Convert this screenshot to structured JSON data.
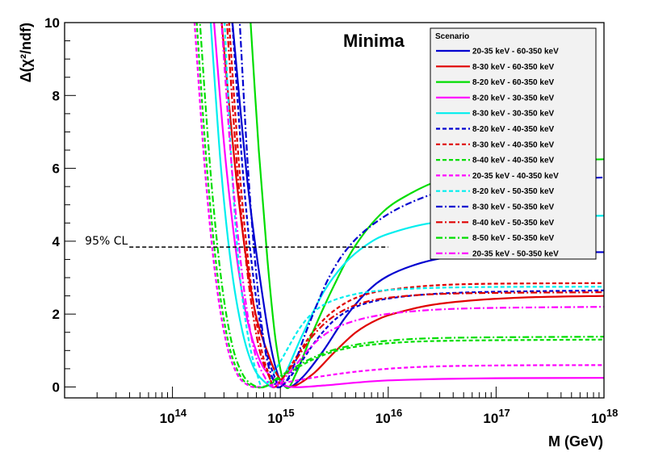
{
  "chart_data": {
    "type": "line",
    "title": "Minima",
    "xlabel": "M (GeV)",
    "ylabel": "Δ(χ²/ndf)",
    "xscale": "log",
    "xlim": [
      10000000000000.0,
      1e+18
    ],
    "ylim": [
      -0.3,
      10
    ],
    "x_tick_labels": [
      {
        "exp": 14,
        "base": "10",
        "sup": "14"
      },
      {
        "exp": 15,
        "base": "10",
        "sup": "15"
      },
      {
        "exp": 16,
        "base": "10",
        "sup": "16"
      },
      {
        "exp": 17,
        "base": "10",
        "sup": "17"
      },
      {
        "exp": 18,
        "base": "10",
        "sup": "18"
      }
    ],
    "y_ticks": [
      0,
      2,
      4,
      6,
      8,
      10
    ],
    "y_tick_labels": [
      "0",
      "2",
      "4",
      "6",
      "8",
      "10"
    ],
    "annotation": {
      "text": "95% CL",
      "y": 3.84,
      "x_from_exp": 13.6,
      "x_to_exp": 16.0
    },
    "legend": {
      "header": "Scenario",
      "position": "top-right"
    },
    "series": [
      {
        "name": "20-35 keV  -  60-350 keV",
        "color": "#0000d0",
        "dash": "solid",
        "min_exp": 15.05,
        "plateau": 3.7,
        "points": [
          [
            14.55,
            10.2
          ],
          [
            14.7,
            5.5
          ],
          [
            14.85,
            2.2
          ],
          [
            14.95,
            0.6
          ],
          [
            15.05,
            0.0
          ],
          [
            15.2,
            0.25
          ],
          [
            15.4,
            1.0
          ],
          [
            15.6,
            1.9
          ],
          [
            15.8,
            2.6
          ],
          [
            16.0,
            3.05
          ],
          [
            16.3,
            3.4
          ],
          [
            16.6,
            3.58
          ],
          [
            17.0,
            3.68
          ],
          [
            17.5,
            3.7
          ],
          [
            18.0,
            3.7
          ]
        ]
      },
      {
        "name": "8-30 keV  -  60-350 keV",
        "color": "#e00000",
        "dash": "solid",
        "min_exp": 15.1,
        "plateau": 2.5,
        "points": [
          [
            14.45,
            10.2
          ],
          [
            14.6,
            5.5
          ],
          [
            14.75,
            2.3
          ],
          [
            14.9,
            0.8
          ],
          [
            15.0,
            0.2
          ],
          [
            15.1,
            0.0
          ],
          [
            15.3,
            0.35
          ],
          [
            15.5,
            0.95
          ],
          [
            15.7,
            1.5
          ],
          [
            15.9,
            1.85
          ],
          [
            16.1,
            2.05
          ],
          [
            16.4,
            2.25
          ],
          [
            16.8,
            2.38
          ],
          [
            17.3,
            2.46
          ],
          [
            18.0,
            2.5
          ]
        ]
      },
      {
        "name": "8-20 keV  -  60-350 keV",
        "color": "#00dd00",
        "dash": "solid",
        "min_exp": 15.05,
        "plateau": 6.25,
        "points": [
          [
            14.72,
            10.2
          ],
          [
            14.8,
            6.5
          ],
          [
            14.88,
            3.5
          ],
          [
            14.96,
            1.2
          ],
          [
            15.05,
            0.0
          ],
          [
            15.15,
            0.4
          ],
          [
            15.3,
            1.5
          ],
          [
            15.5,
            2.8
          ],
          [
            15.7,
            3.9
          ],
          [
            15.95,
            4.8
          ],
          [
            16.2,
            5.3
          ],
          [
            16.5,
            5.7
          ],
          [
            16.9,
            6.0
          ],
          [
            17.4,
            6.2
          ],
          [
            18.0,
            6.25
          ]
        ]
      },
      {
        "name": "8-20 keV  -  30-350 keV",
        "color": "#ff00ff",
        "dash": "solid",
        "min_exp": 15.1,
        "plateau": 0.25,
        "points": [
          [
            14.38,
            10.2
          ],
          [
            14.5,
            6.0
          ],
          [
            14.65,
            2.5
          ],
          [
            14.8,
            0.8
          ],
          [
            14.95,
            0.2
          ],
          [
            15.1,
            0.0
          ],
          [
            15.4,
            0.04
          ],
          [
            15.7,
            0.12
          ],
          [
            16.0,
            0.18
          ],
          [
            16.5,
            0.22
          ],
          [
            17.0,
            0.24
          ],
          [
            18.0,
            0.25
          ]
        ]
      },
      {
        "name": "8-30 keV  -  30-350 keV",
        "color": "#00eeee",
        "dash": "solid",
        "min_exp": 14.95,
        "plateau": 4.7,
        "points": [
          [
            14.35,
            10.2
          ],
          [
            14.45,
            6.0
          ],
          [
            14.55,
            3.2
          ],
          [
            14.65,
            1.5
          ],
          [
            14.75,
            0.55
          ],
          [
            14.85,
            0.15
          ],
          [
            14.95,
            0.0
          ],
          [
            15.05,
            0.4
          ],
          [
            15.2,
            1.4
          ],
          [
            15.4,
            2.6
          ],
          [
            15.6,
            3.4
          ],
          [
            15.8,
            3.9
          ],
          [
            16.0,
            4.2
          ],
          [
            16.4,
            4.5
          ],
          [
            17.0,
            4.65
          ],
          [
            18.0,
            4.7
          ]
        ]
      },
      {
        "name": "8-20 keV  -  40-350 keV",
        "color": "#0000d0",
        "dash": "dash",
        "min_exp": 15.0,
        "plateau": 2.65,
        "points": [
          [
            14.55,
            10.2
          ],
          [
            14.65,
            6.0
          ],
          [
            14.75,
            3.0
          ],
          [
            14.85,
            1.2
          ],
          [
            14.95,
            0.25
          ],
          [
            15.0,
            0.0
          ],
          [
            15.15,
            0.5
          ],
          [
            15.35,
            1.35
          ],
          [
            15.55,
            1.95
          ],
          [
            15.8,
            2.3
          ],
          [
            16.2,
            2.5
          ],
          [
            16.8,
            2.6
          ],
          [
            18.0,
            2.65
          ]
        ]
      },
      {
        "name": "8-30 keV  -  40-350 keV",
        "color": "#e00000",
        "dash": "dash",
        "min_exp": 14.95,
        "plateau": 2.85,
        "points": [
          [
            14.52,
            10.2
          ],
          [
            14.62,
            6.0
          ],
          [
            14.72,
            3.0
          ],
          [
            14.82,
            1.1
          ],
          [
            14.9,
            0.3
          ],
          [
            14.95,
            0.0
          ],
          [
            15.1,
            0.6
          ],
          [
            15.3,
            1.5
          ],
          [
            15.5,
            2.1
          ],
          [
            15.75,
            2.5
          ],
          [
            16.1,
            2.7
          ],
          [
            16.7,
            2.82
          ],
          [
            18.0,
            2.85
          ]
        ]
      },
      {
        "name": "8-40 keV  -  40-350 keV",
        "color": "#00dd00",
        "dash": "dash",
        "min_exp": 14.85,
        "plateau": 1.3,
        "points": [
          [
            14.22,
            10.2
          ],
          [
            14.32,
            6.0
          ],
          [
            14.42,
            3.0
          ],
          [
            14.52,
            1.2
          ],
          [
            14.62,
            0.35
          ],
          [
            14.72,
            0.05
          ],
          [
            14.85,
            0.0
          ],
          [
            15.0,
            0.25
          ],
          [
            15.3,
            0.75
          ],
          [
            15.6,
            1.05
          ],
          [
            16.0,
            1.2
          ],
          [
            16.6,
            1.27
          ],
          [
            18.0,
            1.3
          ]
        ]
      },
      {
        "name": "20-35 keV  -  40-350 keV",
        "color": "#ff00ff",
        "dash": "dash",
        "min_exp": 14.8,
        "plateau": 0.6,
        "points": [
          [
            14.2,
            10.2
          ],
          [
            14.3,
            6.0
          ],
          [
            14.4,
            3.0
          ],
          [
            14.5,
            1.2
          ],
          [
            14.6,
            0.35
          ],
          [
            14.7,
            0.05
          ],
          [
            14.8,
            0.0
          ],
          [
            15.0,
            0.1
          ],
          [
            15.4,
            0.3
          ],
          [
            15.8,
            0.45
          ],
          [
            16.3,
            0.55
          ],
          [
            17.0,
            0.59
          ],
          [
            18.0,
            0.6
          ]
        ]
      },
      {
        "name": "8-20 keV  -  50-350 keV",
        "color": "#00eeee",
        "dash": "dash",
        "min_exp": 14.85,
        "plateau": 2.75,
        "points": [
          [
            14.48,
            10.2
          ],
          [
            14.55,
            6.0
          ],
          [
            14.62,
            3.2
          ],
          [
            14.7,
            1.4
          ],
          [
            14.78,
            0.4
          ],
          [
            14.85,
            0.0
          ],
          [
            15.0,
            0.7
          ],
          [
            15.2,
            1.7
          ],
          [
            15.4,
            2.25
          ],
          [
            15.7,
            2.55
          ],
          [
            16.1,
            2.68
          ],
          [
            16.8,
            2.74
          ],
          [
            18.0,
            2.75
          ]
        ]
      },
      {
        "name": "8-30 keV  -  50-350 keV",
        "color": "#0000d0",
        "dash": "dashdot",
        "min_exp": 15.0,
        "plateau": 5.75,
        "points": [
          [
            14.62,
            10.2
          ],
          [
            14.7,
            6.0
          ],
          [
            14.78,
            3.0
          ],
          [
            14.86,
            1.0
          ],
          [
            14.94,
            0.15
          ],
          [
            15.0,
            0.0
          ],
          [
            15.1,
            0.4
          ],
          [
            15.25,
            1.6
          ],
          [
            15.45,
            3.0
          ],
          [
            15.65,
            3.9
          ],
          [
            15.9,
            4.55
          ],
          [
            16.2,
            5.05
          ],
          [
            16.6,
            5.45
          ],
          [
            17.1,
            5.65
          ],
          [
            18.0,
            5.75
          ]
        ]
      },
      {
        "name": "8-40 keV  -  50-350 keV",
        "color": "#e00000",
        "dash": "dashdot",
        "min_exp": 14.95,
        "plateau": 2.6,
        "points": [
          [
            14.5,
            10.2
          ],
          [
            14.6,
            6.0
          ],
          [
            14.7,
            3.0
          ],
          [
            14.8,
            1.1
          ],
          [
            14.9,
            0.25
          ],
          [
            14.95,
            0.0
          ],
          [
            15.1,
            0.55
          ],
          [
            15.3,
            1.4
          ],
          [
            15.5,
            1.95
          ],
          [
            15.75,
            2.3
          ],
          [
            16.1,
            2.48
          ],
          [
            16.7,
            2.57
          ],
          [
            18.0,
            2.6
          ]
        ]
      },
      {
        "name": "8-50 keV  -  50-350 keV",
        "color": "#00dd00",
        "dash": "dashdot",
        "min_exp": 14.85,
        "plateau": 1.38,
        "points": [
          [
            14.25,
            10.2
          ],
          [
            14.35,
            6.0
          ],
          [
            14.45,
            3.0
          ],
          [
            14.55,
            1.2
          ],
          [
            14.65,
            0.35
          ],
          [
            14.75,
            0.05
          ],
          [
            14.85,
            0.0
          ],
          [
            15.0,
            0.3
          ],
          [
            15.3,
            0.8
          ],
          [
            15.6,
            1.1
          ],
          [
            16.0,
            1.27
          ],
          [
            16.6,
            1.35
          ],
          [
            18.0,
            1.38
          ]
        ]
      },
      {
        "name": "20-35 keV  -  50-350 keV",
        "color": "#ff00ff",
        "dash": "dashdot",
        "min_exp": 14.95,
        "plateau": 2.2,
        "points": [
          [
            14.45,
            10.2
          ],
          [
            14.55,
            6.0
          ],
          [
            14.65,
            3.0
          ],
          [
            14.75,
            1.1
          ],
          [
            14.85,
            0.3
          ],
          [
            14.95,
            0.0
          ],
          [
            15.1,
            0.45
          ],
          [
            15.3,
            1.15
          ],
          [
            15.5,
            1.6
          ],
          [
            15.8,
            1.9
          ],
          [
            16.2,
            2.07
          ],
          [
            16.8,
            2.16
          ],
          [
            18.0,
            2.2
          ]
        ]
      }
    ]
  }
}
